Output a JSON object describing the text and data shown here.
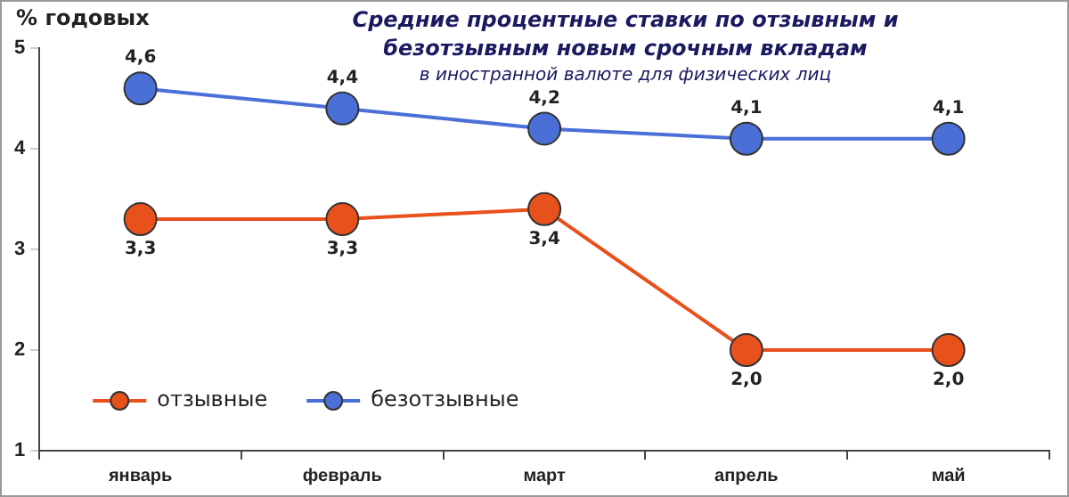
{
  "chart_data": {
    "type": "line",
    "title": "Средние процентные ставки по отзывным и безотзывным новым срочным вкладам",
    "subtitle": "в иностранной валюте для физических лиц",
    "ylabel": "% годовых",
    "categories": [
      "январь",
      "февраль",
      "март",
      "апрель",
      "май"
    ],
    "series": [
      {
        "name": "отзывные",
        "color": "#e8501c",
        "values": [
          3.3,
          3.3,
          3.4,
          2.0,
          2.0
        ],
        "value_labels": [
          "3,3",
          "3,3",
          "3,4",
          "2,0",
          "2,0"
        ]
      },
      {
        "name": "безотзывные",
        "color": "#4a70d8",
        "values": [
          4.6,
          4.4,
          4.2,
          4.1,
          4.1
        ],
        "value_labels": [
          "4,6",
          "4,4",
          "4,2",
          "4,1",
          "4,1"
        ]
      }
    ],
    "ylim": [
      1,
      5
    ],
    "yticks": [
      1,
      2,
      3,
      4,
      5
    ],
    "grid": false,
    "legend": "bottom left",
    "marker": "circle",
    "line_style": "solid"
  }
}
